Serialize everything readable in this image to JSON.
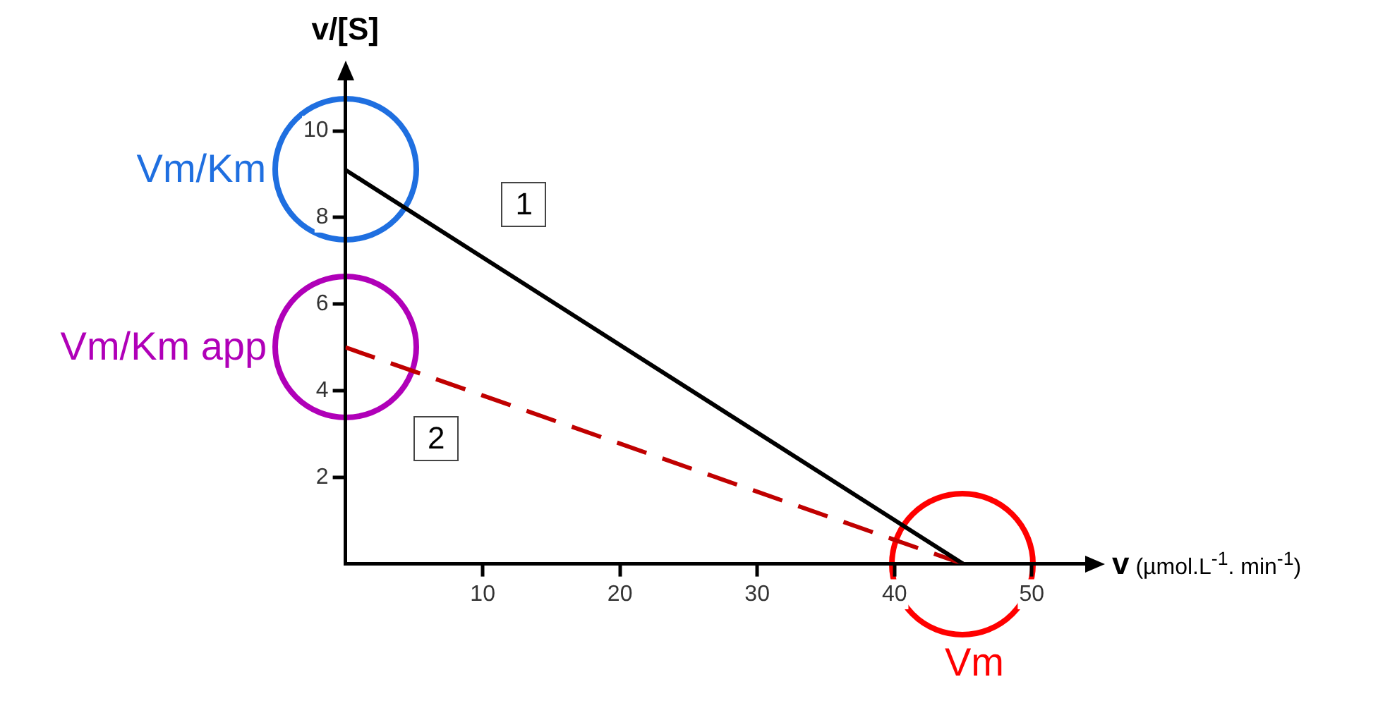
{
  "chart_data": {
    "type": "line",
    "xlabel": "v (µmol.L$^{-1}$. min$^{-1}$)",
    "ylabel": "v/[S]",
    "x": [
      0,
      45
    ],
    "xlim": [
      0,
      54
    ],
    "ylim": [
      0,
      11.2
    ],
    "xticks": [
      10,
      20,
      30,
      40,
      50
    ],
    "yticks": [
      2,
      4,
      6,
      8,
      10
    ],
    "grid": false,
    "legend": false,
    "marker": "none",
    "series": [
      {
        "color": "#000000",
        "values": [
          9.1,
          0
        ],
        "line_style": "solid"
      },
      {
        "color": "#c00000",
        "values": [
          5.0,
          0
        ],
        "line_style": "dashed"
      }
    ],
    "annotations": [
      {
        "text": "Vm/Km",
        "x": 0,
        "y": 9.1
      },
      {
        "text": "Vm/Km app",
        "x": 0,
        "y": 5.0
      },
      {
        "text": "Vm",
        "x": 45,
        "y": 0
      },
      {
        "text": "1",
        "x": 13,
        "y": 8.3
      },
      {
        "text": "2",
        "x": 6.6,
        "y": 2.9
      }
    ]
  }
}
